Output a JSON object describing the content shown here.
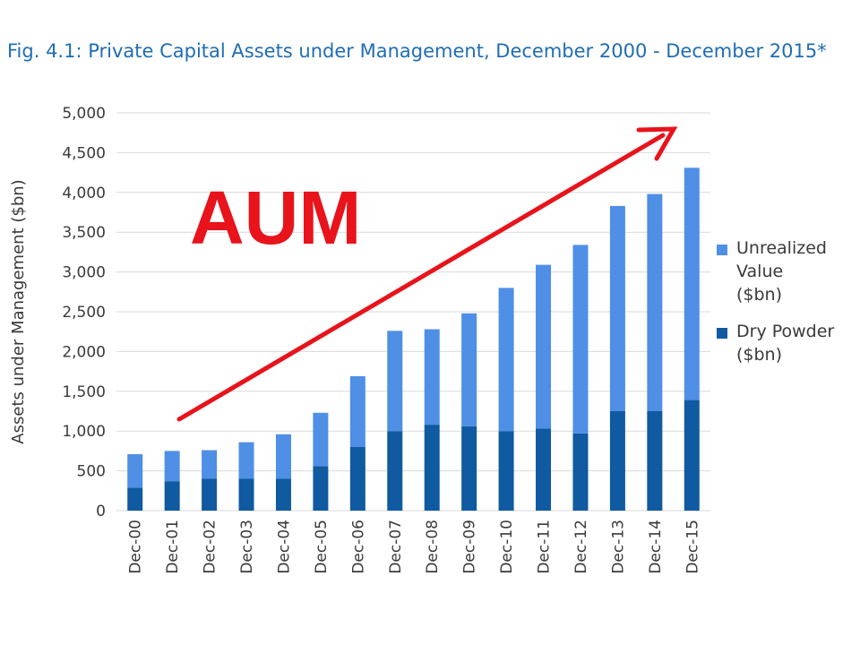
{
  "title": "Fig. 4.1: Private Capital Assets under Management, December 2000 - December 2015*",
  "annotation": "AUM",
  "colors": {
    "title": "#1f6db5",
    "unrealized": "#4f8fe6",
    "dry_powder": "#0f5aa0",
    "arrow": "#e8131b",
    "grid": "#d9d9d9",
    "axis_text": "#3a3a3a"
  },
  "legend": [
    {
      "label": "Unrealized Value ($bn)",
      "color_key": "unrealized"
    },
    {
      "label": "Dry Powder ($bn)",
      "color_key": "dry_powder"
    }
  ],
  "chart_data": {
    "type": "bar",
    "stacked": true,
    "ylabel": "Assets under Management ($bn)",
    "ylim": [
      0,
      5000
    ],
    "yticks": [
      0,
      500,
      1000,
      1500,
      2000,
      2500,
      3000,
      3500,
      4000,
      4500,
      5000
    ],
    "ytick_labels": [
      "0",
      "500",
      "1,000",
      "1,500",
      "2,000",
      "2,500",
      "3,000",
      "3,500",
      "4,000",
      "4,500",
      "5,000"
    ],
    "grid": true,
    "legend_position": "right",
    "categories": [
      "Dec-00",
      "Dec-01",
      "Dec-02",
      "Dec-03",
      "Dec-04",
      "Dec-05",
      "Dec-06",
      "Dec-07",
      "Dec-08",
      "Dec-09",
      "Dec-10",
      "Dec-11",
      "Dec-12",
      "Dec-13",
      "Dec-14",
      "Dec-15"
    ],
    "series": [
      {
        "name": "Dry Powder ($bn)",
        "values": [
          290,
          370,
          400,
          400,
          400,
          560,
          800,
          1000,
          1080,
          1060,
          1000,
          1030,
          970,
          1250,
          1250,
          1390
        ]
      },
      {
        "name": "Unrealized Value ($bn)",
        "values": [
          420,
          380,
          360,
          460,
          560,
          670,
          890,
          1260,
          1200,
          1420,
          1800,
          2060,
          2370,
          2580,
          2730,
          2920
        ]
      }
    ]
  }
}
